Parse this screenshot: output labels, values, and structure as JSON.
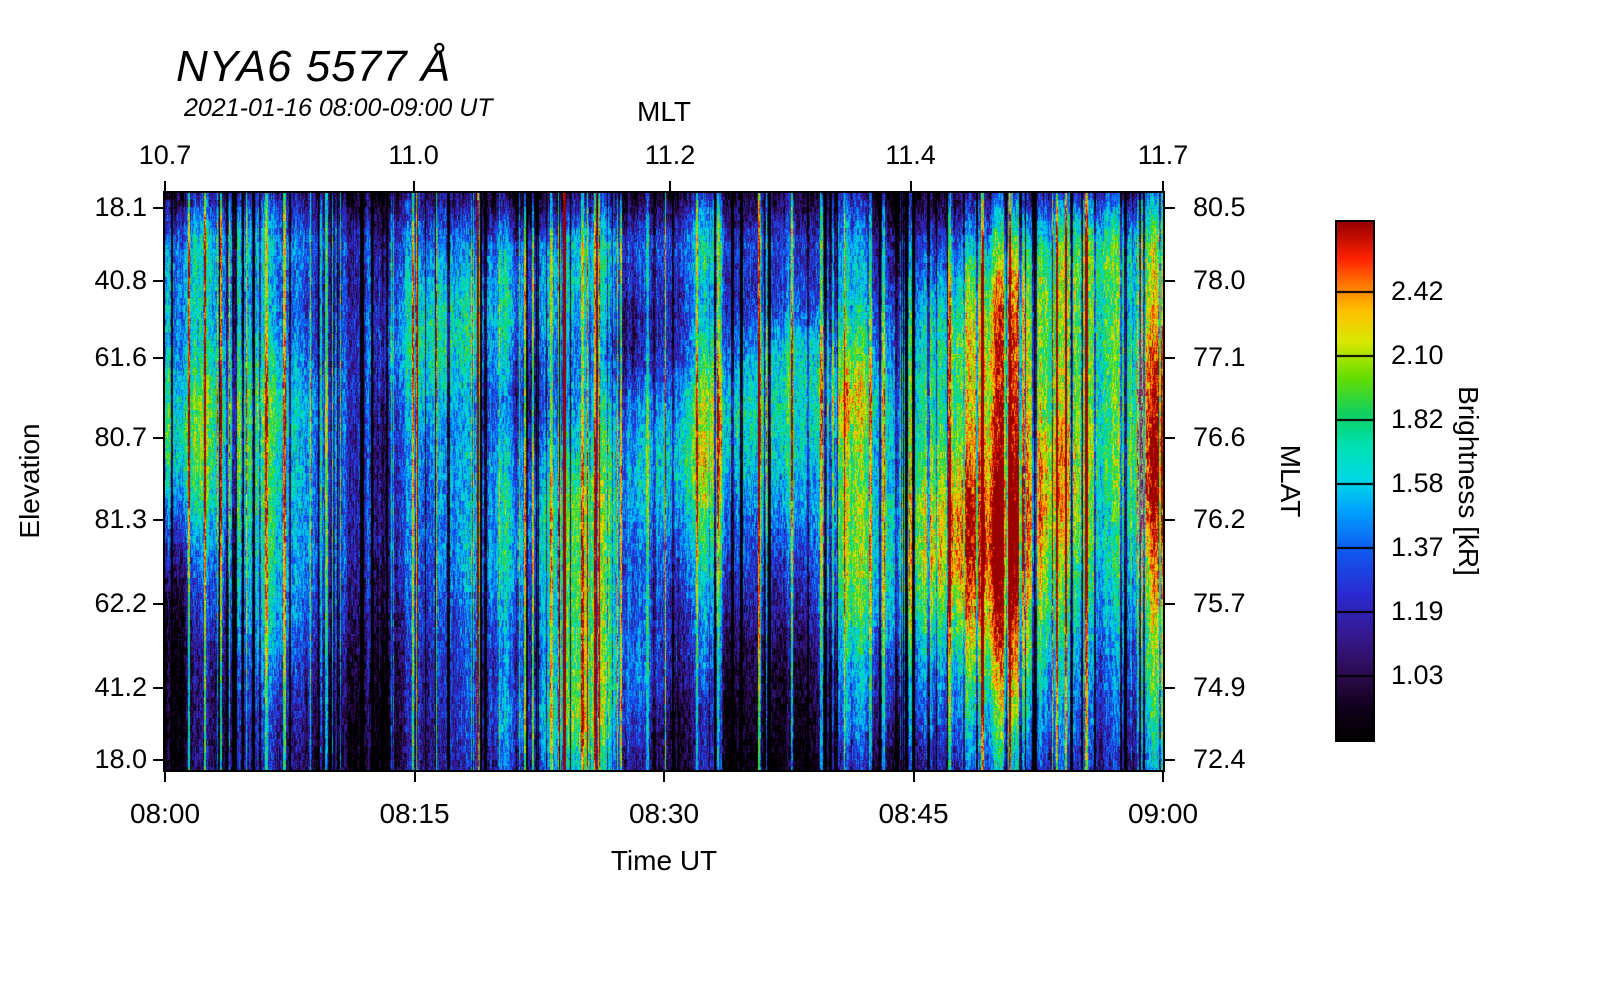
{
  "chart_data": {
    "type": "heatmap",
    "title": "NYA6 5577 Å",
    "subtitle": "2021-01-16 08:00-09:00 UT",
    "axes": {
      "top": {
        "label": "MLT",
        "ticks": [
          {
            "label": "10.7",
            "pos": 0.0
          },
          {
            "label": "11.0",
            "pos": 0.249
          },
          {
            "label": "11.2",
            "pos": 0.506
          },
          {
            "label": "11.4",
            "pos": 0.747
          },
          {
            "label": "11.7",
            "pos": 1.0
          }
        ]
      },
      "bottom": {
        "label": "Time UT",
        "ticks": [
          {
            "label": "08:00",
            "pos": 0.0
          },
          {
            "label": "08:15",
            "pos": 0.25
          },
          {
            "label": "08:30",
            "pos": 0.5
          },
          {
            "label": "08:45",
            "pos": 0.75
          },
          {
            "label": "09:00",
            "pos": 1.0
          }
        ]
      },
      "left": {
        "label": "Elevation",
        "ticks": [
          {
            "label": "18.1",
            "pos": 0.026
          },
          {
            "label": "40.8",
            "pos": 0.152
          },
          {
            "label": "61.6",
            "pos": 0.286
          },
          {
            "label": "80.7",
            "pos": 0.425
          },
          {
            "label": "81.3",
            "pos": 0.567
          },
          {
            "label": "62.2",
            "pos": 0.712
          },
          {
            "label": "41.2",
            "pos": 0.858
          },
          {
            "label": "18.0",
            "pos": 0.983
          }
        ]
      },
      "right": {
        "label": "MLAT",
        "ticks": [
          {
            "label": "80.5",
            "pos": 0.026
          },
          {
            "label": "78.0",
            "pos": 0.152
          },
          {
            "label": "77.1",
            "pos": 0.286
          },
          {
            "label": "76.6",
            "pos": 0.425
          },
          {
            "label": "76.2",
            "pos": 0.567
          },
          {
            "label": "75.7",
            "pos": 0.712
          },
          {
            "label": "74.9",
            "pos": 0.858
          },
          {
            "label": "72.4",
            "pos": 0.983
          }
        ]
      }
    },
    "colorbar": {
      "label": "Brightness [kR]",
      "ticks": [
        {
          "label": "2.42",
          "pos": 0.135
        },
        {
          "label": "2.10",
          "pos": 0.259
        },
        {
          "label": "1.82",
          "pos": 0.382
        },
        {
          "label": "1.58",
          "pos": 0.506
        },
        {
          "label": "1.37",
          "pos": 0.629
        },
        {
          "label": "1.19",
          "pos": 0.753
        },
        {
          "label": "1.03",
          "pos": 0.876
        }
      ],
      "stops": [
        {
          "t": 0.0,
          "color": "#000000"
        },
        {
          "t": 0.06,
          "color": "#10001a"
        },
        {
          "t": 0.12,
          "color": "#2b0a4a"
        },
        {
          "t": 0.2,
          "color": "#35188f"
        },
        {
          "t": 0.28,
          "color": "#2a2ad0"
        },
        {
          "t": 0.36,
          "color": "#1155ee"
        },
        {
          "t": 0.44,
          "color": "#00a0ff"
        },
        {
          "t": 0.5,
          "color": "#00d8e8"
        },
        {
          "t": 0.57,
          "color": "#00e0b0"
        },
        {
          "t": 0.63,
          "color": "#10d060"
        },
        {
          "t": 0.7,
          "color": "#66dd00"
        },
        {
          "t": 0.77,
          "color": "#d8e800"
        },
        {
          "t": 0.83,
          "color": "#ffc000"
        },
        {
          "t": 0.88,
          "color": "#ff7700"
        },
        {
          "t": 0.93,
          "color": "#ff2200"
        },
        {
          "t": 1.0,
          "color": "#990000"
        }
      ]
    },
    "value_range": [
      0.85,
      2.65
    ],
    "units": "kR",
    "x_start": "08:00",
    "x_end": "09:00",
    "grid": {
      "rows": 12,
      "cols": 20,
      "values": [
        [
          0.95,
          0.95,
          0.92,
          0.95,
          0.95,
          0.95,
          0.92,
          0.95,
          0.95,
          1.0,
          1.0,
          1.05,
          1.1,
          1.05,
          1.0,
          1.1,
          1.15,
          1.1,
          1.05,
          1.2
        ],
        [
          1.3,
          1.35,
          1.25,
          1.3,
          1.35,
          1.3,
          1.25,
          1.35,
          1.3,
          1.3,
          1.35,
          1.45,
          1.5,
          1.45,
          1.4,
          1.5,
          1.6,
          1.5,
          1.45,
          1.6
        ],
        [
          1.5,
          1.4,
          1.3,
          1.25,
          1.3,
          1.35,
          1.3,
          1.4,
          1.3,
          1.25,
          1.35,
          1.5,
          1.6,
          1.5,
          1.45,
          1.7,
          1.9,
          1.6,
          1.5,
          1.9
        ],
        [
          1.6,
          1.5,
          1.35,
          1.2,
          1.25,
          1.4,
          1.3,
          1.35,
          1.25,
          1.3,
          1.45,
          1.7,
          1.9,
          1.6,
          1.5,
          1.9,
          2.2,
          1.7,
          1.6,
          2.3
        ],
        [
          1.7,
          1.55,
          1.45,
          1.3,
          1.2,
          1.35,
          1.25,
          1.3,
          1.35,
          1.5,
          1.6,
          1.9,
          1.8,
          2.0,
          1.8,
          2.0,
          2.4,
          1.8,
          1.5,
          2.4
        ],
        [
          1.6,
          1.5,
          1.4,
          1.35,
          1.25,
          1.3,
          1.35,
          1.45,
          1.4,
          1.55,
          1.7,
          1.8,
          1.9,
          1.8,
          1.9,
          2.3,
          2.5,
          1.9,
          1.4,
          2.5
        ],
        [
          1.3,
          1.45,
          1.5,
          1.4,
          1.3,
          1.2,
          1.3,
          1.5,
          1.55,
          1.5,
          1.6,
          1.7,
          1.8,
          1.9,
          2.0,
          2.5,
          2.6,
          1.8,
          1.3,
          2.4
        ],
        [
          1.1,
          1.3,
          1.5,
          1.35,
          1.2,
          1.1,
          1.25,
          1.45,
          1.6,
          1.4,
          1.5,
          1.6,
          1.5,
          1.8,
          1.9,
          2.4,
          2.5,
          1.6,
          1.35,
          2.2
        ],
        [
          0.95,
          1.2,
          1.4,
          1.2,
          1.05,
          1.0,
          1.1,
          1.35,
          1.7,
          1.5,
          1.3,
          1.4,
          1.3,
          1.6,
          1.7,
          2.0,
          2.3,
          1.5,
          1.3,
          2.0
        ],
        [
          0.92,
          1.0,
          1.2,
          1.05,
          0.95,
          0.95,
          1.05,
          1.3,
          1.8,
          1.6,
          1.2,
          1.2,
          1.1,
          1.3,
          1.4,
          1.6,
          2.0,
          1.4,
          1.2,
          1.8
        ],
        [
          0.9,
          0.95,
          1.0,
          0.95,
          0.92,
          0.95,
          1.1,
          1.5,
          1.9,
          1.4,
          1.0,
          1.05,
          1.0,
          1.2,
          1.3,
          1.5,
          1.7,
          1.3,
          1.1,
          1.6
        ],
        [
          0.9,
          0.9,
          0.92,
          0.9,
          0.9,
          0.95,
          1.05,
          1.3,
          1.5,
          1.2,
          0.95,
          1.0,
          0.95,
          1.05,
          1.1,
          1.3,
          1.4,
          1.1,
          1.0,
          1.3
        ]
      ]
    }
  }
}
